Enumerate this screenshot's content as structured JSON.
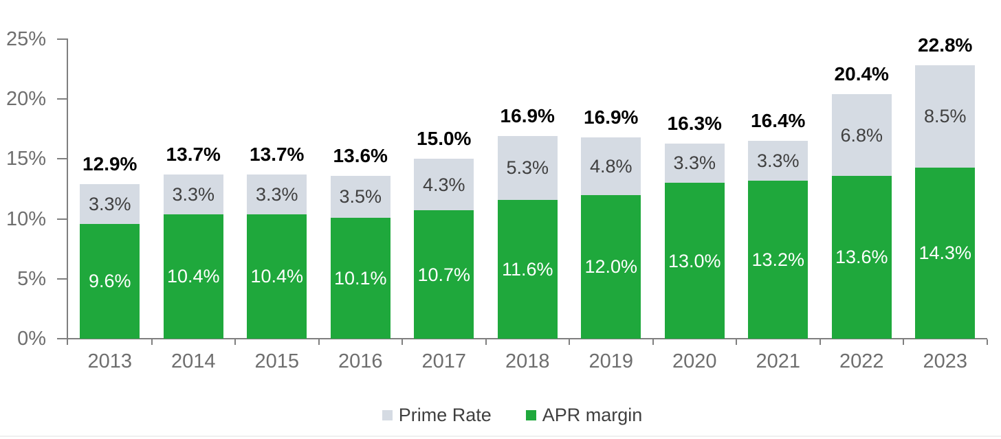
{
  "chart_data": {
    "type": "bar",
    "stacked": true,
    "title": "",
    "categories": [
      "2013",
      "2014",
      "2015",
      "2016",
      "2017",
      "2018",
      "2019",
      "2020",
      "2021",
      "2022",
      "2023"
    ],
    "series": [
      {
        "name": "APR margin",
        "color": "#1fa83c",
        "label_color": "#ffffff",
        "values": [
          9.6,
          10.4,
          10.4,
          10.1,
          10.7,
          11.6,
          12.0,
          13.0,
          13.2,
          13.6,
          14.3
        ],
        "labels": [
          "9.6%",
          "10.4%",
          "10.4%",
          "10.1%",
          "10.7%",
          "11.6%",
          "12.0%",
          "13.0%",
          "13.2%",
          "13.6%",
          "14.3%"
        ]
      },
      {
        "name": "Prime Rate",
        "color": "#d5dbe3",
        "label_color": "#404040",
        "values": [
          3.3,
          3.3,
          3.3,
          3.5,
          4.3,
          5.3,
          4.8,
          3.3,
          3.3,
          6.8,
          8.5
        ],
        "labels": [
          "3.3%",
          "3.3%",
          "3.3%",
          "3.5%",
          "4.3%",
          "5.3%",
          "4.8%",
          "3.3%",
          "3.3%",
          "6.8%",
          "8.5%"
        ]
      }
    ],
    "totals": [
      12.9,
      13.7,
      13.7,
      13.6,
      15.0,
      16.9,
      16.9,
      16.3,
      16.4,
      20.4,
      22.8
    ],
    "total_labels": [
      "12.9%",
      "13.7%",
      "13.7%",
      "13.6%",
      "15.0%",
      "16.9%",
      "16.9%",
      "16.3%",
      "16.4%",
      "20.4%",
      "22.8%"
    ],
    "xlabel": "",
    "ylabel": "",
    "y_axis": {
      "min": 0,
      "max": 25,
      "tick_step": 5,
      "ticks": [
        {
          "value": 0,
          "label": "0%"
        },
        {
          "value": 5,
          "label": "5%"
        },
        {
          "value": 10,
          "label": "10%"
        },
        {
          "value": 15,
          "label": "15%"
        },
        {
          "value": 20,
          "label": "20%"
        },
        {
          "value": 25,
          "label": "25%"
        }
      ]
    },
    "grid": false,
    "axis_color": "#7f7f7f",
    "tick_label_color": "#6e6e6e",
    "legend": {
      "position": "bottom",
      "items": [
        {
          "label": "Prime Rate",
          "color": "#d5dbe3"
        },
        {
          "label": "APR margin",
          "color": "#1fa83c"
        }
      ]
    }
  }
}
